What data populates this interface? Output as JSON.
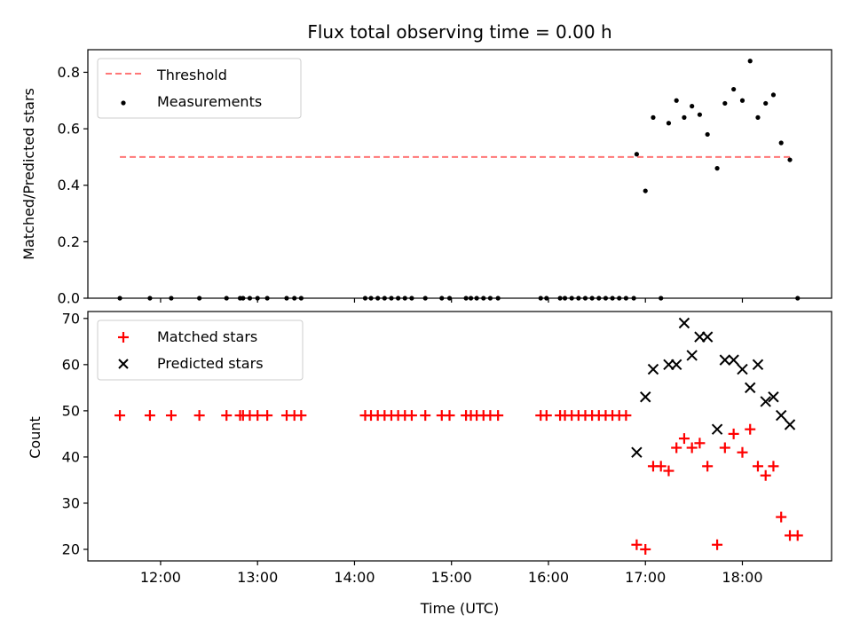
{
  "chart_data": [
    {
      "type": "scatter",
      "title": "Flux total observing time = 0.00 h",
      "xlabel": "",
      "ylabel": "Matched/Predicted stars",
      "ylim": [
        0,
        0.88
      ],
      "yticks": [
        0.0,
        0.2,
        0.4,
        0.6,
        0.8
      ],
      "ytick_labels": [
        "0.0",
        "0.2",
        "0.4",
        "0.6",
        "0.8"
      ],
      "xlim": [
        11.25,
        18.92
      ],
      "legend_position": "top-left",
      "series": [
        {
          "name": "Threshold",
          "kind": "dashed-line",
          "color": "#ff7777",
          "x": [
            11.58,
            18.52
          ],
          "y": [
            0.5,
            0.5
          ]
        },
        {
          "name": "Measurements",
          "kind": "dots",
          "color": "#000000",
          "x": [
            11.58,
            11.89,
            12.11,
            12.4,
            12.68,
            12.82,
            12.85,
            12.92,
            13.0,
            13.1,
            13.3,
            13.38,
            13.45,
            14.11,
            14.17,
            14.24,
            14.31,
            14.38,
            14.45,
            14.52,
            14.59,
            14.73,
            14.9,
            14.98,
            15.15,
            15.2,
            15.26,
            15.33,
            15.4,
            15.48,
            15.92,
            15.98,
            16.12,
            16.17,
            16.24,
            16.31,
            16.38,
            16.45,
            16.52,
            16.59,
            16.66,
            16.73,
            16.8,
            16.88,
            16.91,
            17.0,
            17.08,
            17.16,
            17.24,
            17.32,
            17.4,
            17.48,
            17.56,
            17.64,
            17.74,
            17.82,
            17.91,
            18.0,
            18.08,
            18.16,
            18.24,
            18.32,
            18.4,
            18.49,
            18.57
          ],
          "y": [
            0,
            0,
            0,
            0,
            0,
            0,
            0,
            0,
            0,
            0,
            0,
            0,
            0,
            0,
            0,
            0,
            0,
            0,
            0,
            0,
            0,
            0,
            0,
            0,
            0,
            0,
            0,
            0,
            0,
            0,
            0,
            0,
            0,
            0,
            0,
            0,
            0,
            0,
            0,
            0,
            0,
            0,
            0,
            0,
            0.51,
            0.38,
            0.64,
            0.0,
            0.62,
            0.7,
            0.64,
            0.68,
            0.65,
            0.58,
            0.46,
            0.69,
            0.74,
            0.7,
            0.84,
            0.64,
            0.69,
            0.72,
            0.55,
            0.49,
            0.0
          ]
        }
      ]
    },
    {
      "type": "scatter",
      "title": "",
      "xlabel": "Time (UTC)",
      "ylabel": "Count",
      "ylim": [
        17.5,
        71.5
      ],
      "yticks": [
        20,
        30,
        40,
        50,
        60,
        70
      ],
      "ytick_labels": [
        "20",
        "30",
        "40",
        "50",
        "60",
        "70"
      ],
      "xlim": [
        11.25,
        18.92
      ],
      "xticks": [
        12,
        13,
        14,
        15,
        16,
        17,
        18
      ],
      "xtick_labels": [
        "12:00",
        "13:00",
        "14:00",
        "15:00",
        "16:00",
        "17:00",
        "18:00"
      ],
      "legend_position": "top-left",
      "series": [
        {
          "name": "Matched stars",
          "kind": "plus",
          "color": "#ff0000",
          "x": [
            11.58,
            11.89,
            12.11,
            12.4,
            12.68,
            12.82,
            12.85,
            12.92,
            13.0,
            13.1,
            13.3,
            13.38,
            13.45,
            14.11,
            14.17,
            14.24,
            14.31,
            14.38,
            14.45,
            14.52,
            14.59,
            14.73,
            14.9,
            14.98,
            15.15,
            15.2,
            15.26,
            15.33,
            15.4,
            15.48,
            15.92,
            15.98,
            16.12,
            16.17,
            16.24,
            16.31,
            16.38,
            16.45,
            16.52,
            16.59,
            16.66,
            16.73,
            16.8,
            16.91,
            17.0,
            17.08,
            17.16,
            17.24,
            17.32,
            17.4,
            17.48,
            17.56,
            17.64,
            17.74,
            17.82,
            17.91,
            18.0,
            18.08,
            18.16,
            18.24,
            18.32,
            18.4,
            18.49,
            18.57
          ],
          "y": [
            49,
            49,
            49,
            49,
            49,
            49,
            49,
            49,
            49,
            49,
            49,
            49,
            49,
            49,
            49,
            49,
            49,
            49,
            49,
            49,
            49,
            49,
            49,
            49,
            49,
            49,
            49,
            49,
            49,
            49,
            49,
            49,
            49,
            49,
            49,
            49,
            49,
            49,
            49,
            49,
            49,
            49,
            49,
            21,
            20,
            38,
            38,
            37,
            42,
            44,
            42,
            43,
            38,
            21,
            42,
            45,
            41,
            46,
            38,
            36,
            38,
            27,
            23,
            23
          ]
        },
        {
          "name": "Predicted stars",
          "kind": "x",
          "color": "#000000",
          "x": [
            16.91,
            17.0,
            17.08,
            17.24,
            17.32,
            17.4,
            17.48,
            17.56,
            17.64,
            17.74,
            17.82,
            17.91,
            18.0,
            18.08,
            18.16,
            18.24,
            18.32,
            18.4,
            18.49
          ],
          "y": [
            41,
            53,
            59,
            60,
            60,
            69,
            62,
            66,
            66,
            46,
            61,
            61,
            59,
            55,
            60,
            52,
            53,
            49,
            47
          ]
        }
      ]
    }
  ]
}
